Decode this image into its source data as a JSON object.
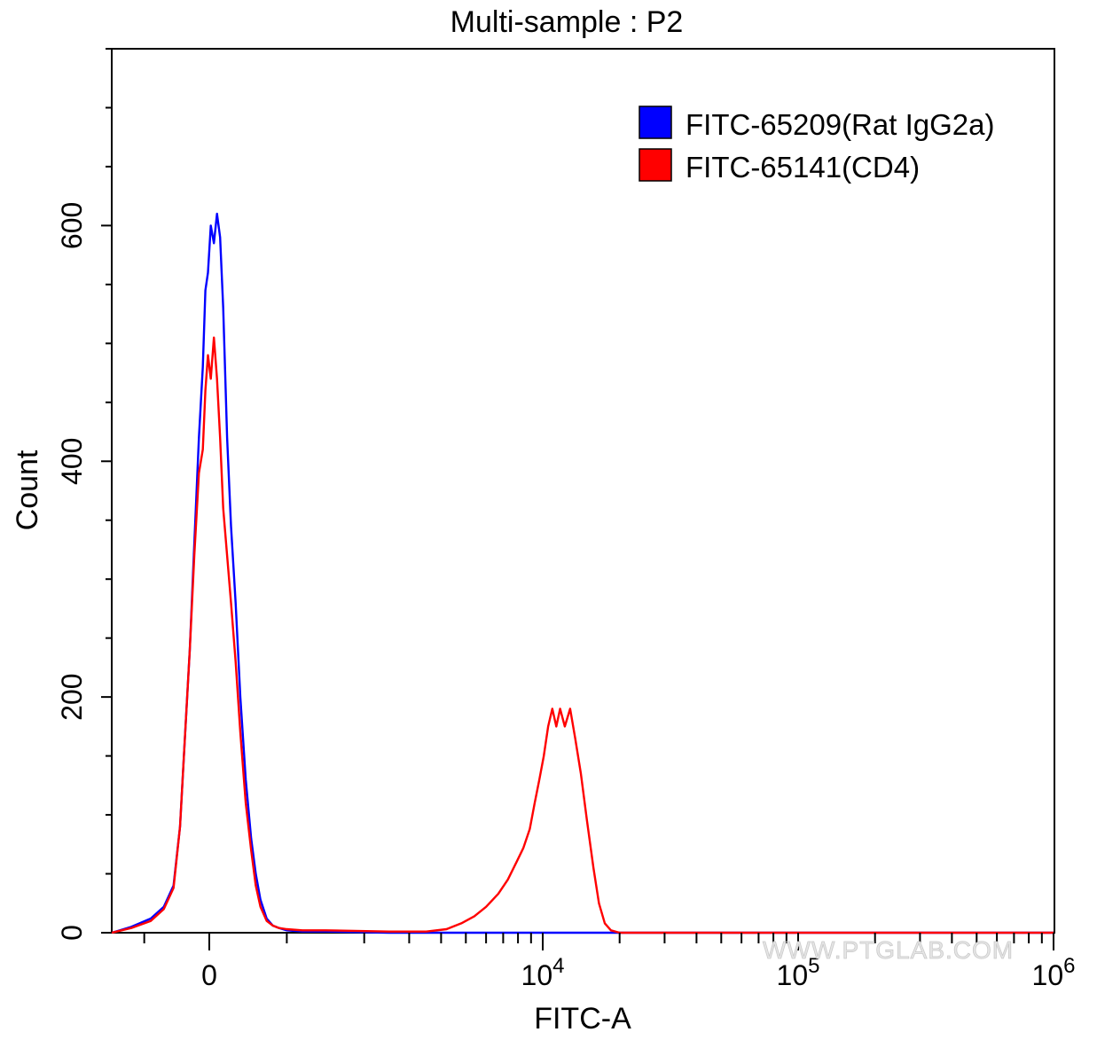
{
  "chart_data": {
    "type": "histogram",
    "title": "Multi-sample : P2",
    "xlabel": "FITC-A",
    "ylabel": "Count",
    "x_scale": "biexponential",
    "xlim": [
      -1500,
      1000000
    ],
    "ylim": [
      0,
      750
    ],
    "y_ticks": [
      0,
      200,
      400,
      600
    ],
    "y_tick_labels": [
      "0",
      "200",
      "400",
      "600"
    ],
    "x_tick_labels": [
      {
        "value": 0,
        "base": "0",
        "exp": ""
      },
      {
        "value": 10000,
        "base": "10",
        "exp": "4"
      },
      {
        "value": 100000,
        "base": "10",
        "exp": "5"
      },
      {
        "value": 1000000,
        "base": "10",
        "exp": "6"
      }
    ],
    "grid": false,
    "legend_position": "top-right",
    "series": [
      {
        "name": "FITC-65209(Rat IgG2a)",
        "color": "#0000ff",
        "points": [
          [
            -1500,
            0
          ],
          [
            -1200,
            5
          ],
          [
            -900,
            12
          ],
          [
            -700,
            22
          ],
          [
            -550,
            40
          ],
          [
            -450,
            90
          ],
          [
            -380,
            160
          ],
          [
            -300,
            240
          ],
          [
            -230,
            330
          ],
          [
            -160,
            420
          ],
          [
            -100,
            480
          ],
          [
            -60,
            545
          ],
          [
            -20,
            560
          ],
          [
            20,
            600
          ],
          [
            60,
            585
          ],
          [
            100,
            610
          ],
          [
            140,
            590
          ],
          [
            180,
            530
          ],
          [
            230,
            420
          ],
          [
            280,
            345
          ],
          [
            340,
            280
          ],
          [
            400,
            200
          ],
          [
            470,
            130
          ],
          [
            540,
            80
          ],
          [
            600,
            50
          ],
          [
            660,
            28
          ],
          [
            740,
            12
          ],
          [
            820,
            6
          ],
          [
            900,
            4
          ],
          [
            1000,
            2
          ],
          [
            1200,
            1
          ],
          [
            1500,
            1
          ],
          [
            2500,
            0
          ],
          [
            1000000,
            0
          ]
        ]
      },
      {
        "name": "FITC-65141(CD4)",
        "color": "#ff0000",
        "points": [
          [
            -1500,
            0
          ],
          [
            -1200,
            4
          ],
          [
            -900,
            10
          ],
          [
            -700,
            20
          ],
          [
            -550,
            38
          ],
          [
            -450,
            90
          ],
          [
            -380,
            160
          ],
          [
            -300,
            240
          ],
          [
            -230,
            320
          ],
          [
            -160,
            390
          ],
          [
            -100,
            410
          ],
          [
            -60,
            460
          ],
          [
            -20,
            490
          ],
          [
            20,
            470
          ],
          [
            60,
            505
          ],
          [
            100,
            470
          ],
          [
            140,
            420
          ],
          [
            180,
            360
          ],
          [
            230,
            320
          ],
          [
            280,
            280
          ],
          [
            340,
            230
          ],
          [
            400,
            170
          ],
          [
            470,
            110
          ],
          [
            540,
            70
          ],
          [
            600,
            40
          ],
          [
            660,
            22
          ],
          [
            740,
            10
          ],
          [
            820,
            6
          ],
          [
            900,
            4
          ],
          [
            1000,
            3
          ],
          [
            1200,
            2
          ],
          [
            1500,
            2
          ],
          [
            2500,
            1
          ],
          [
            3500,
            1
          ],
          [
            4200,
            3
          ],
          [
            4800,
            8
          ],
          [
            5400,
            14
          ],
          [
            6000,
            22
          ],
          [
            6700,
            33
          ],
          [
            7300,
            45
          ],
          [
            7900,
            60
          ],
          [
            8400,
            72
          ],
          [
            8900,
            88
          ],
          [
            9300,
            110
          ],
          [
            9700,
            130
          ],
          [
            10100,
            150
          ],
          [
            10500,
            175
          ],
          [
            10900,
            190
          ],
          [
            11300,
            175
          ],
          [
            11700,
            190
          ],
          [
            12200,
            175
          ],
          [
            12800,
            190
          ],
          [
            13400,
            165
          ],
          [
            14100,
            135
          ],
          [
            14900,
            95
          ],
          [
            15800,
            55
          ],
          [
            16600,
            25
          ],
          [
            17500,
            8
          ],
          [
            18500,
            2
          ],
          [
            20000,
            0
          ],
          [
            1000000,
            0
          ]
        ]
      }
    ]
  },
  "watermark": "WWW.PTGLAB.COM"
}
